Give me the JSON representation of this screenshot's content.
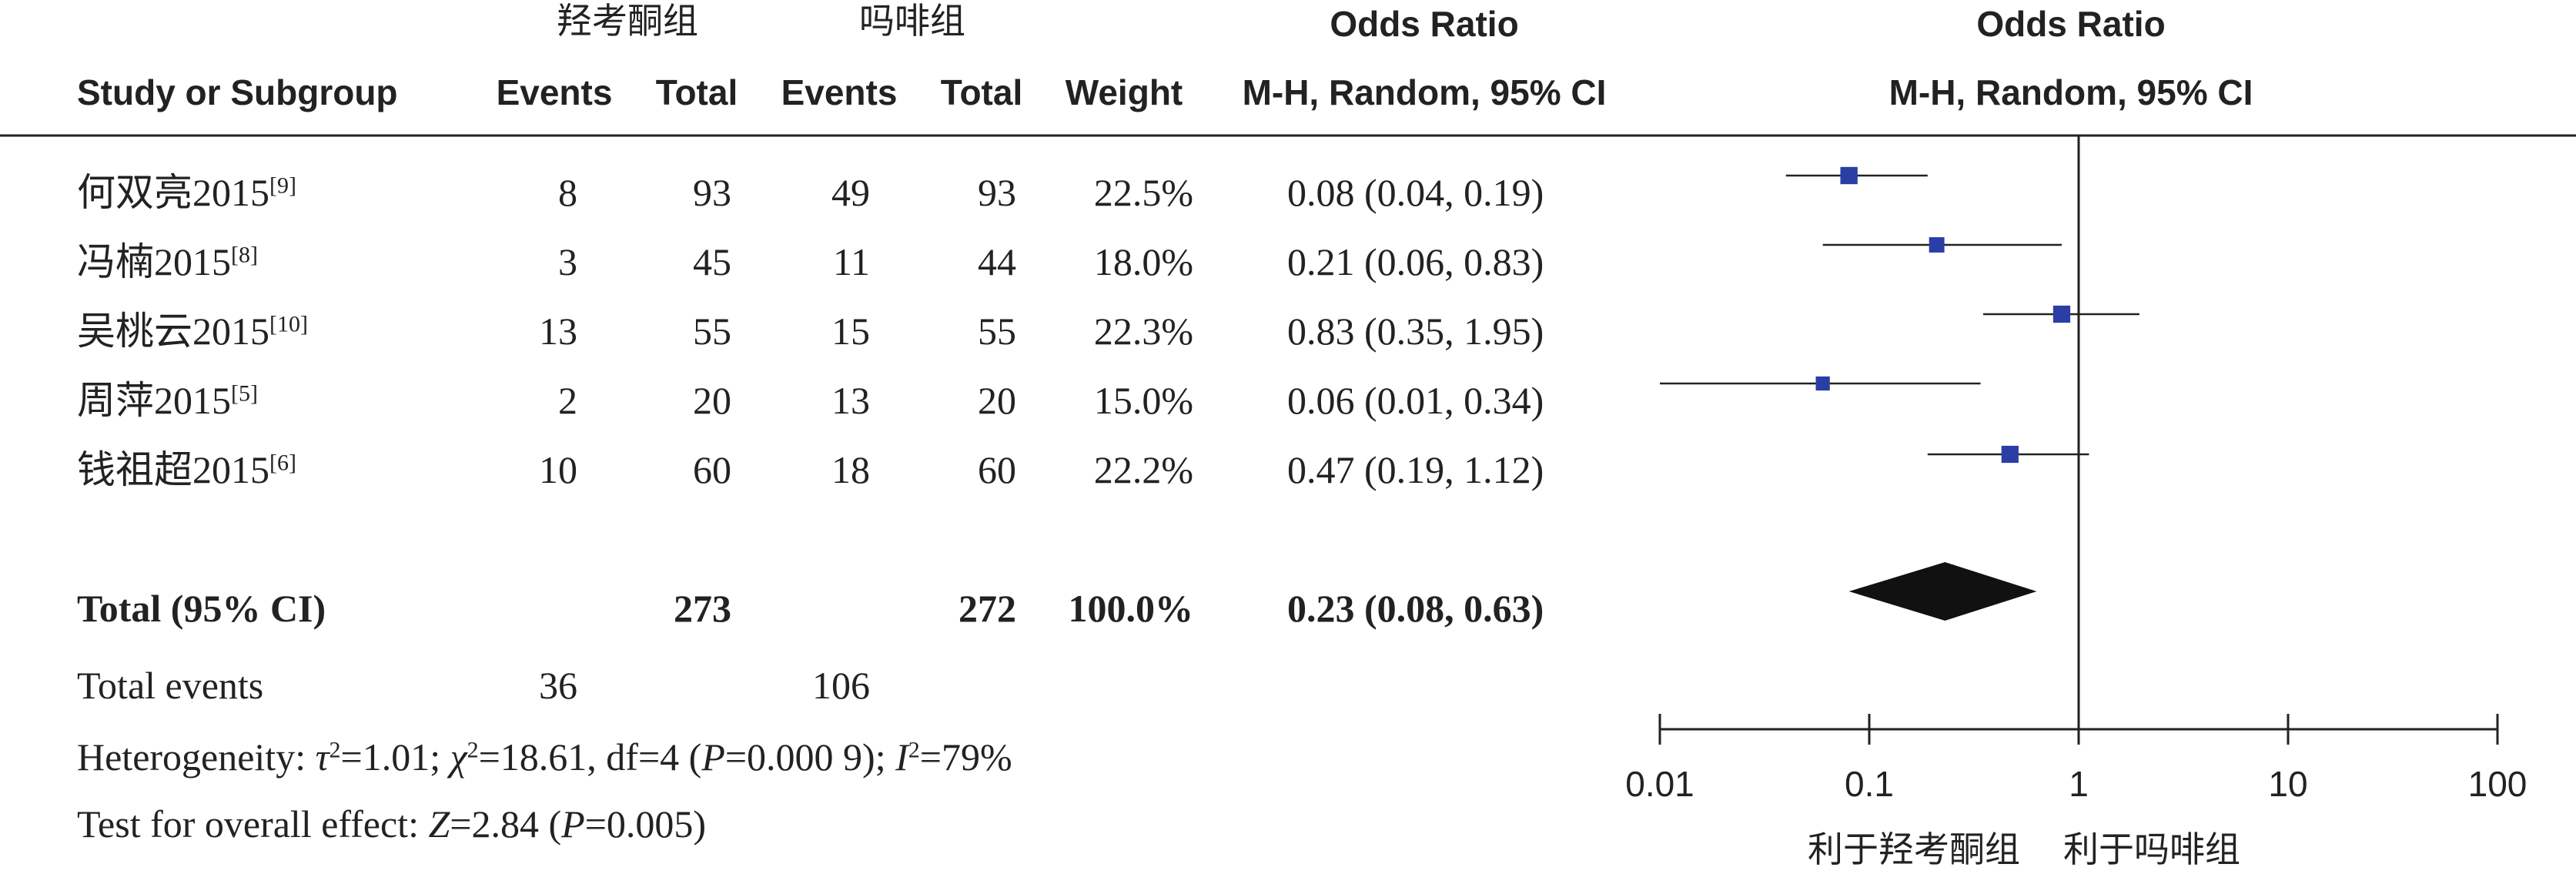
{
  "header": {
    "group1": "羟考酮组",
    "group2": "吗啡组",
    "or_title_1": "Odds Ratio",
    "or_method_1": "M-H, Random, 95% CI",
    "or_title_2": "Odds Ratio",
    "or_method_2": "M-H, Random, 95% CI",
    "col_study": "Study or Subgroup",
    "col_events1": "Events",
    "col_total1": "Total",
    "col_events2": "Events",
    "col_total2": "Total",
    "col_weight": "Weight"
  },
  "studies": [
    {
      "name": "何双亮2015",
      "ref": "[9]",
      "events1": "8",
      "total1": "93",
      "events2": "49",
      "total2": "93",
      "weight": "22.5%",
      "ci_text": "0.08 (0.04, 0.19)"
    },
    {
      "name": "冯楠2015",
      "ref": "[8]",
      "events1": "3",
      "total1": "45",
      "events2": "11",
      "total2": "44",
      "weight": "18.0%",
      "ci_text": "0.21 (0.06, 0.83)"
    },
    {
      "name": "吴桃云2015",
      "ref": "[10]",
      "events1": "13",
      "total1": "55",
      "events2": "15",
      "total2": "55",
      "weight": "22.3%",
      "ci_text": "0.83 (0.35, 1.95)"
    },
    {
      "name": "周萍2015",
      "ref": "[5]",
      "events1": "2",
      "total1": "20",
      "events2": "13",
      "total2": "20",
      "weight": "15.0%",
      "ci_text": "0.06 (0.01, 0.34)"
    },
    {
      "name": "钱祖超2015",
      "ref": "[6]",
      "events1": "10",
      "total1": "60",
      "events2": "18",
      "total2": "60",
      "weight": "22.2%",
      "ci_text": "0.47 (0.19, 1.12)"
    }
  ],
  "total": {
    "label": "Total (95% CI)",
    "total1": "273",
    "total2": "272",
    "weight": "100.0%",
    "ci_text": "0.23 (0.08, 0.63)"
  },
  "total_events": {
    "label": "Total events",
    "events1": "36",
    "events2": "106"
  },
  "heterogeneity": {
    "label": "Heterogeneity: ",
    "tau2": "=1.01; ",
    "chi2": "=18.61, df=4 (",
    "p": "=0.000 9); ",
    "i2": "=79%"
  },
  "overall": {
    "label": "Test for overall effect: ",
    "z": "=2.84 (",
    "p": "=0.005)"
  },
  "axis": {
    "ticks": [
      "0.01",
      "0.1",
      "1",
      "10",
      "100"
    ],
    "favours_left": "利于羟考酮组",
    "favours_right": "利于吗啡组"
  },
  "chart_data": {
    "type": "scatter",
    "x_scale": "log",
    "xlim": [
      0.01,
      100
    ],
    "reference_line": 1,
    "title": "Odds Ratio",
    "xlabel": "",
    "marker_color": "#2b3ea5",
    "series": [
      {
        "points": [
          {
            "or": 0.08,
            "lo": 0.04,
            "hi": 0.19,
            "weight": 22.5
          },
          {
            "or": 0.21,
            "lo": 0.06,
            "hi": 0.83,
            "weight": 18.0
          },
          {
            "or": 0.83,
            "lo": 0.35,
            "hi": 1.95,
            "weight": 22.3
          },
          {
            "or": 0.06,
            "lo": 0.01,
            "hi": 0.34,
            "weight": 15.0
          },
          {
            "or": 0.47,
            "lo": 0.19,
            "hi": 1.12,
            "weight": 22.2
          }
        ]
      }
    ],
    "pooled": {
      "or": 0.23,
      "lo": 0.08,
      "hi": 0.63
    }
  }
}
